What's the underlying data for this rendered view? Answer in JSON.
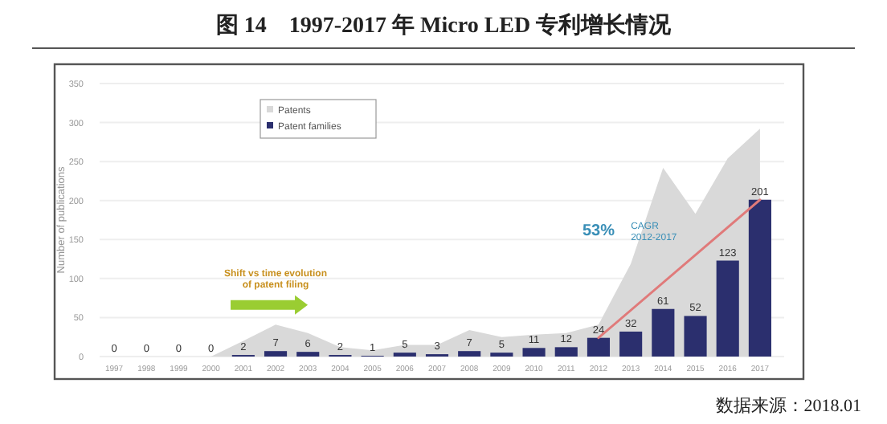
{
  "chart_data": {
    "type": "bar",
    "title": "图 14　1997-2017 年 Micro LED 专利增长情况",
    "categories": [
      "1997",
      "1998",
      "1999",
      "2000",
      "2001",
      "2002",
      "2003",
      "2004",
      "2005",
      "2006",
      "2007",
      "2008",
      "2009",
      "2010",
      "2011",
      "2012",
      "2013",
      "2014",
      "2015",
      "2016",
      "2017"
    ],
    "series": [
      {
        "name": "Patents",
        "type": "area",
        "color": "#d9d9d9",
        "values": [
          0,
          0,
          0,
          0,
          20,
          41,
          30,
          12,
          8,
          15,
          15,
          34,
          25,
          28,
          30,
          41,
          119,
          242,
          183,
          254,
          292
        ]
      },
      {
        "name": "Patent families",
        "color": "#2b2f6e",
        "values": [
          0,
          0,
          0,
          0,
          2,
          7,
          6,
          2,
          1,
          5,
          3,
          7,
          5,
          11,
          12,
          24,
          32,
          61,
          52,
          123,
          201
        ],
        "value_labels": [
          "0",
          "0",
          "0",
          "0",
          "2",
          "7",
          "6",
          "2",
          "1",
          "5",
          "3",
          "7",
          "5",
          "11",
          "12",
          "24",
          "32",
          "61",
          "52",
          "123",
          "201"
        ]
      },
      {
        "type": "line",
        "color": "#e07a7a",
        "values": [
          null,
          null,
          null,
          null,
          null,
          null,
          null,
          null,
          null,
          null,
          null,
          null,
          null,
          null,
          null,
          24,
          null,
          null,
          null,
          null,
          201
        ]
      }
    ],
    "ylabel": "Number of publications",
    "ylim": [
      0,
      350
    ],
    "yticks": [
      0,
      50,
      100,
      150,
      200,
      250,
      300,
      350
    ],
    "grid": "y",
    "legend": "top left",
    "annotations": [
      "Shift vs time evolution of patent filing",
      "53%",
      "CAGR 2012-2017",
      "数据来源：2018.01"
    ]
  }
}
